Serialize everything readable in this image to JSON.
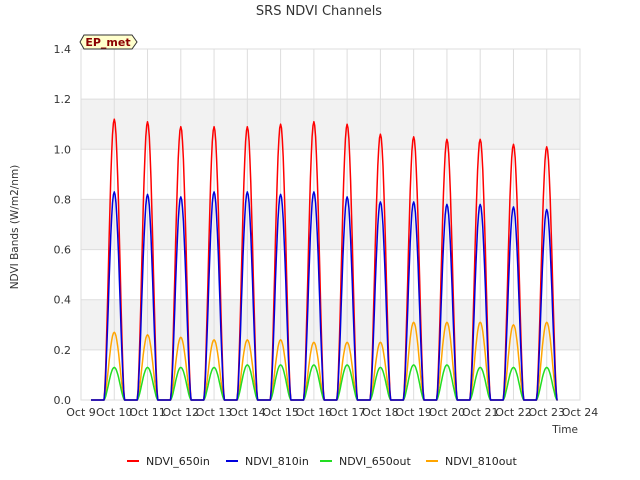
{
  "chart_data": {
    "type": "line",
    "title": "SRS NDVI Channels",
    "xlabel": "Time",
    "ylabel": "NDVI Bands (W/m2/nm)",
    "badge": "EP_met",
    "ylim": [
      0,
      1.4
    ],
    "yticks": [
      "0.0",
      "0.2",
      "0.4",
      "0.6",
      "0.8",
      "1.0",
      "1.2",
      "1.4"
    ],
    "xlim": [
      "Oct 9",
      "Oct 24"
    ],
    "xticks": [
      "Oct 9",
      "Oct 10",
      "Oct 11",
      "Oct 12",
      "Oct 13",
      "Oct 14",
      "Oct 15",
      "Oct 16",
      "Oct 17",
      "Oct 18",
      "Oct 19",
      "Oct 20",
      "Oct 21",
      "Oct 22",
      "Oct 23",
      "Oct 24"
    ],
    "categories": [
      "Oct 10",
      "Oct 11",
      "Oct 12",
      "Oct 13",
      "Oct 14",
      "Oct 15",
      "Oct 16",
      "Oct 17",
      "Oct 18",
      "Oct 19",
      "Oct 20",
      "Oct 21",
      "Oct 22",
      "Oct 23"
    ],
    "series": [
      {
        "name": "NDVI_650in",
        "color": "#ff0000",
        "peaks": [
          1.12,
          1.11,
          1.09,
          1.09,
          1.09,
          1.1,
          1.11,
          1.1,
          1.06,
          1.05,
          1.04,
          1.04,
          1.02,
          1.01
        ]
      },
      {
        "name": "NDVI_810in",
        "color": "#0000dd",
        "peaks": [
          0.83,
          0.82,
          0.81,
          0.83,
          0.83,
          0.82,
          0.83,
          0.81,
          0.79,
          0.79,
          0.78,
          0.78,
          0.77,
          0.76
        ]
      },
      {
        "name": "NDVI_650out",
        "color": "#22dd22",
        "peaks": [
          0.13,
          0.13,
          0.13,
          0.13,
          0.14,
          0.14,
          0.14,
          0.14,
          0.13,
          0.14,
          0.14,
          0.13,
          0.13,
          0.13
        ]
      },
      {
        "name": "NDVI_810out",
        "color": "#ffa500",
        "peaks": [
          0.27,
          0.26,
          0.25,
          0.24,
          0.24,
          0.24,
          0.23,
          0.23,
          0.23,
          0.31,
          0.31,
          0.31,
          0.3,
          0.31
        ]
      }
    ],
    "grid": true,
    "legend_position": "bottom"
  }
}
